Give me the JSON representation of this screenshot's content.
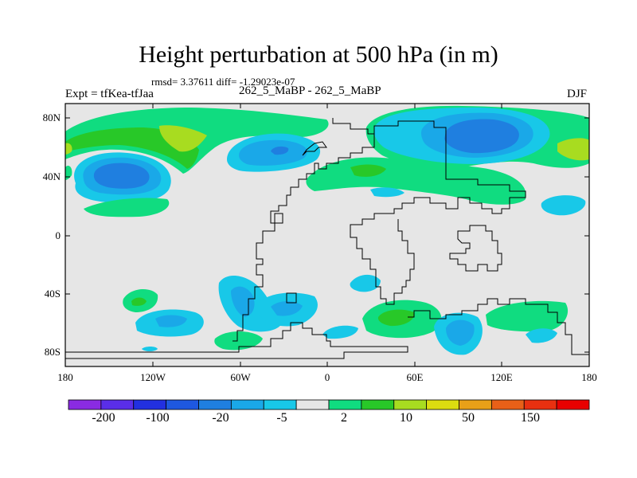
{
  "title": "Height perturbation at 500 hPa (in m)",
  "stats": "rmsd= 3.37611 diff= -1.29023e-07",
  "left_label": "Expt = tfKea-tfJaa",
  "center_label": "262_5_MaBP - 262_5_MaBP",
  "right_label": "DJF",
  "lat_ticks": [
    "80N",
    "40N",
    "0",
    "40S",
    "80S"
  ],
  "lon_ticks": [
    "180",
    "120W",
    "60W",
    "0",
    "60E",
    "120E",
    "180"
  ],
  "colorbar": {
    "colors": [
      "#8a2be2",
      "#5a2ee8",
      "#2230e0",
      "#1e58e0",
      "#1f7fe0",
      "#1aa8e8",
      "#18c8e8",
      "#e6e6e6",
      "#10dc80",
      "#28c828",
      "#a8dc20",
      "#dcdc10",
      "#e8a018",
      "#e86018",
      "#e83010",
      "#e80000"
    ],
    "labels": [
      "-200",
      "-100",
      "-20",
      "-5",
      "2",
      "10",
      "50",
      "150"
    ]
  },
  "map_colors": {
    "background": "#e6e6e6",
    "light_blue": "#18c8e8",
    "mid_blue": "#1aa8e8",
    "blue": "#1f7fe0",
    "green": "#10dc80",
    "bright_green": "#28c828",
    "yellow_green": "#a8dc20",
    "coast": "#000000"
  }
}
